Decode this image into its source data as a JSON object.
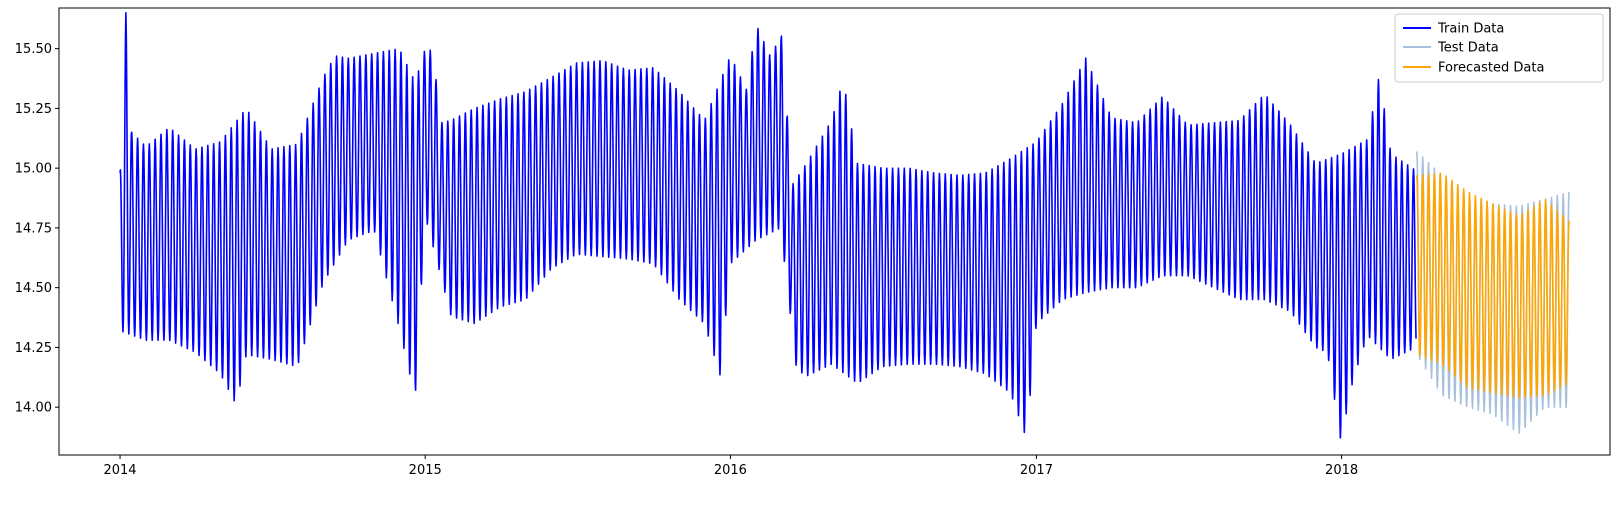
{
  "chart_data": {
    "type": "line",
    "title": "",
    "xlabel": "",
    "ylabel": "",
    "xlim": [
      "2013-10-20",
      "2018-11-18"
    ],
    "ylim": [
      13.8,
      15.67
    ],
    "x_ticks": [
      "2014",
      "2015",
      "2016",
      "2017",
      "2018"
    ],
    "y_ticks": [
      "14.00",
      "14.25",
      "14.50",
      "14.75",
      "15.00",
      "15.25",
      "15.50"
    ],
    "grid": false,
    "legend_position": "top-right",
    "series": [
      {
        "name": "Train Data",
        "color": "#0000ff",
        "x_start": "2014-01-01",
        "x_end": "2018-03-31",
        "period_days": 7,
        "highs": [
          [
            "2014-01-01",
            14.98
          ],
          [
            "2014-01-08",
            15.65
          ],
          [
            "2014-01-15",
            15.15
          ],
          [
            "2014-02-01",
            15.09
          ],
          [
            "2014-03-01",
            15.17
          ],
          [
            "2014-04-01",
            15.08
          ],
          [
            "2014-05-01",
            15.11
          ],
          [
            "2014-06-01",
            15.25
          ],
          [
            "2014-07-01",
            15.08
          ],
          [
            "2014-08-01",
            15.1
          ],
          [
            "2014-09-01",
            15.38
          ],
          [
            "2014-09-15",
            15.47
          ],
          [
            "2014-10-01",
            15.46
          ],
          [
            "2014-11-01",
            15.48
          ],
          [
            "2014-12-01",
            15.5
          ],
          [
            "2014-12-20",
            15.36
          ],
          [
            "2015-01-01",
            15.5
          ],
          [
            "2015-01-10",
            15.49
          ],
          [
            "2015-01-20",
            15.19
          ],
          [
            "2015-02-01",
            15.2
          ],
          [
            "2015-03-01",
            15.25
          ],
          [
            "2015-04-01",
            15.29
          ],
          [
            "2015-05-01",
            15.32
          ],
          [
            "2015-06-01",
            15.38
          ],
          [
            "2015-07-01",
            15.44
          ],
          [
            "2015-08-01",
            15.45
          ],
          [
            "2015-09-01",
            15.41
          ],
          [
            "2015-10-01",
            15.42
          ],
          [
            "2015-11-01",
            15.32
          ],
          [
            "2015-12-01",
            15.2
          ],
          [
            "2016-01-01",
            15.47
          ],
          [
            "2016-01-20",
            15.33
          ],
          [
            "2016-02-01",
            15.6
          ],
          [
            "2016-02-20",
            15.45
          ],
          [
            "2016-03-01",
            15.6
          ],
          [
            "2016-03-15",
            14.93
          ],
          [
            "2016-04-01",
            15.02
          ],
          [
            "2016-05-01",
            15.2
          ],
          [
            "2016-05-15",
            15.37
          ],
          [
            "2016-06-01",
            15.02
          ],
          [
            "2016-07-01",
            15.0
          ],
          [
            "2016-08-01",
            15.0
          ],
          [
            "2016-09-01",
            14.98
          ],
          [
            "2016-10-01",
            14.97
          ],
          [
            "2016-11-01",
            14.98
          ],
          [
            "2016-12-01",
            15.04
          ],
          [
            "2017-01-01",
            15.11
          ],
          [
            "2017-02-01",
            15.27
          ],
          [
            "2017-03-01",
            15.46
          ],
          [
            "2017-04-01",
            15.21
          ],
          [
            "2017-05-01",
            15.19
          ],
          [
            "2017-06-01",
            15.3
          ],
          [
            "2017-07-01",
            15.18
          ],
          [
            "2017-08-01",
            15.19
          ],
          [
            "2017-09-01",
            15.2
          ],
          [
            "2017-10-01",
            15.31
          ],
          [
            "2017-11-01",
            15.18
          ],
          [
            "2017-12-01",
            15.02
          ],
          [
            "2018-01-01",
            15.06
          ],
          [
            "2018-02-01",
            15.12
          ],
          [
            "2018-02-15",
            15.39
          ],
          [
            "2018-03-01",
            15.06
          ],
          [
            "2018-03-31",
            14.99
          ]
        ],
        "lows": [
          [
            "2014-01-01",
            14.32
          ],
          [
            "2014-02-01",
            14.28
          ],
          [
            "2014-03-01",
            14.28
          ],
          [
            "2014-04-01",
            14.23
          ],
          [
            "2014-05-01",
            14.14
          ],
          [
            "2014-05-20",
            14.01
          ],
          [
            "2014-06-01",
            14.22
          ],
          [
            "2014-07-01",
            14.2
          ],
          [
            "2014-08-01",
            14.17
          ],
          [
            "2014-09-01",
            14.52
          ],
          [
            "2014-10-01",
            14.7
          ],
          [
            "2014-11-01",
            14.74
          ],
          [
            "2014-12-01",
            14.33
          ],
          [
            "2014-12-20",
            14.04
          ],
          [
            "2015-01-01",
            14.8
          ],
          [
            "2015-02-01",
            14.38
          ],
          [
            "2015-03-01",
            14.35
          ],
          [
            "2015-04-01",
            14.42
          ],
          [
            "2015-05-01",
            14.45
          ],
          [
            "2015-06-01",
            14.58
          ],
          [
            "2015-07-01",
            14.64
          ],
          [
            "2015-08-01",
            14.63
          ],
          [
            "2015-09-01",
            14.62
          ],
          [
            "2015-10-01",
            14.6
          ],
          [
            "2015-11-01",
            14.45
          ],
          [
            "2015-12-01",
            14.35
          ],
          [
            "2015-12-20",
            14.13
          ],
          [
            "2016-01-01",
            14.6
          ],
          [
            "2016-02-01",
            14.7
          ],
          [
            "2016-03-01",
            14.75
          ],
          [
            "2016-03-20",
            14.16
          ],
          [
            "2016-04-01",
            14.13
          ],
          [
            "2016-05-01",
            14.18
          ],
          [
            "2016-06-01",
            14.1
          ],
          [
            "2016-07-01",
            14.17
          ],
          [
            "2016-08-01",
            14.18
          ],
          [
            "2016-09-01",
            14.18
          ],
          [
            "2016-10-01",
            14.17
          ],
          [
            "2016-11-01",
            14.14
          ],
          [
            "2016-12-01",
            14.06
          ],
          [
            "2016-12-20",
            13.87
          ],
          [
            "2017-01-01",
            14.35
          ],
          [
            "2017-02-01",
            14.45
          ],
          [
            "2017-03-01",
            14.48
          ],
          [
            "2017-04-01",
            14.5
          ],
          [
            "2017-05-01",
            14.5
          ],
          [
            "2017-06-01",
            14.55
          ],
          [
            "2017-07-01",
            14.55
          ],
          [
            "2017-08-01",
            14.5
          ],
          [
            "2017-09-01",
            14.45
          ],
          [
            "2017-10-01",
            14.45
          ],
          [
            "2017-11-01",
            14.4
          ],
          [
            "2017-12-01",
            14.25
          ],
          [
            "2017-12-15",
            14.23
          ],
          [
            "2017-12-31",
            13.86
          ],
          [
            "2018-01-15",
            14.12
          ],
          [
            "2018-02-01",
            14.3
          ],
          [
            "2018-03-01",
            14.2
          ],
          [
            "2018-03-31",
            14.25
          ]
        ]
      },
      {
        "name": "Test Data",
        "color": "#a7c0de",
        "x_start": "2018-04-01",
        "x_end": "2018-09-30",
        "period_days": 7,
        "highs": [
          [
            "2018-04-01",
            15.07
          ],
          [
            "2018-05-01",
            14.97
          ],
          [
            "2018-06-01",
            14.88
          ],
          [
            "2018-07-01",
            14.85
          ],
          [
            "2018-08-01",
            14.84
          ],
          [
            "2018-09-01",
            14.87
          ],
          [
            "2018-09-30",
            14.9
          ]
        ],
        "lows": [
          [
            "2018-04-01",
            14.22
          ],
          [
            "2018-05-01",
            14.05
          ],
          [
            "2018-06-01",
            14.0
          ],
          [
            "2018-07-01",
            13.97
          ],
          [
            "2018-08-01",
            13.89
          ],
          [
            "2018-09-01",
            14.0
          ],
          [
            "2018-09-30",
            14.0
          ]
        ]
      },
      {
        "name": "Forecasted Data",
        "color": "#ffa500",
        "x_start": "2018-04-01",
        "x_end": "2018-09-30",
        "period_days": 7,
        "highs": [
          [
            "2018-04-01",
            14.97
          ],
          [
            "2018-05-01",
            14.98
          ],
          [
            "2018-06-01",
            14.9
          ],
          [
            "2018-07-01",
            14.85
          ],
          [
            "2018-08-01",
            14.8
          ],
          [
            "2018-09-01",
            14.87
          ],
          [
            "2018-09-30",
            14.78
          ]
        ],
        "lows": [
          [
            "2018-04-01",
            14.22
          ],
          [
            "2018-05-01",
            14.18
          ],
          [
            "2018-06-01",
            14.08
          ],
          [
            "2018-07-01",
            14.06
          ],
          [
            "2018-08-01",
            14.04
          ],
          [
            "2018-09-01",
            14.05
          ],
          [
            "2018-09-30",
            14.1
          ]
        ]
      }
    ]
  }
}
